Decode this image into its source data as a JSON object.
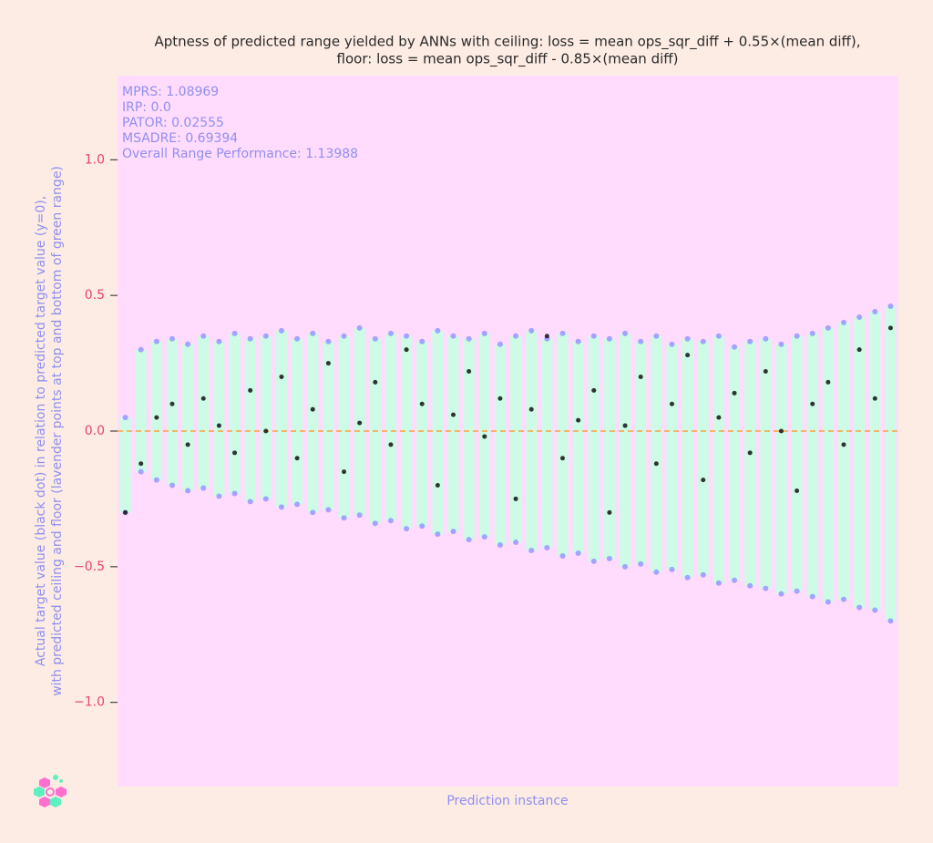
{
  "chart_data": {
    "type": "range-scatter",
    "title": [
      "Aptness of predicted range yielded by ANNs with ceiling: loss = mean ops_sqr_diff + 0.55×(mean diff),",
      "floor: loss = mean ops_sqr_diff - 0.85×(mean diff)"
    ],
    "annotations": [
      "MPRS: 1.08969",
      "IRP: 0.0",
      "PATOR: 0.02555",
      "MSADRE: 0.69394",
      "Overall Range Performance: 1.13988"
    ],
    "y_label": [
      "Actual target value (black dot) in relation to predicted target value (y=0),",
      "with predicted ceiling and floor (lavender points at top and bottom of green range)"
    ],
    "x_label": "Prediction instance",
    "ylim": [
      -1.31,
      1.31
    ],
    "yticks": [
      {
        "value": -1,
        "label": "−1.0"
      },
      {
        "value": -0.5,
        "label": "−0.5"
      },
      {
        "value": 0,
        "label": "0.0"
      },
      {
        "value": 0.5,
        "label": "0.5"
      },
      {
        "value": 1,
        "label": "1.0"
      }
    ],
    "reference_line": 0,
    "range_color": "#cdfbe6",
    "series": [
      {
        "name": "ceiling",
        "color": "#9b9bff",
        "values": [
          0.05,
          0.3,
          0.33,
          0.34,
          0.32,
          0.35,
          0.33,
          0.36,
          0.34,
          0.35,
          0.37,
          0.34,
          0.36,
          0.33,
          0.35,
          0.38,
          0.34,
          0.36,
          0.35,
          0.33,
          0.37,
          0.35,
          0.34,
          0.36,
          0.32,
          0.35,
          0.37,
          0.34,
          0.36,
          0.33,
          0.35,
          0.34,
          0.36,
          0.33,
          0.35,
          0.32,
          0.34,
          0.33,
          0.35,
          0.31,
          0.33,
          0.34,
          0.32,
          0.35,
          0.36,
          0.38,
          0.4,
          0.42,
          0.44,
          0.46
        ]
      },
      {
        "name": "floor",
        "color": "#9b9bff",
        "values": [
          -0.3,
          -0.15,
          -0.18,
          -0.2,
          -0.22,
          -0.21,
          -0.24,
          -0.23,
          -0.26,
          -0.25,
          -0.28,
          -0.27,
          -0.3,
          -0.29,
          -0.32,
          -0.31,
          -0.34,
          -0.33,
          -0.36,
          -0.35,
          -0.38,
          -0.37,
          -0.4,
          -0.39,
          -0.42,
          -0.41,
          -0.44,
          -0.43,
          -0.46,
          -0.45,
          -0.48,
          -0.47,
          -0.5,
          -0.49,
          -0.52,
          -0.51,
          -0.54,
          -0.53,
          -0.56,
          -0.55,
          -0.57,
          -0.58,
          -0.6,
          -0.59,
          -0.61,
          -0.63,
          -0.62,
          -0.65,
          -0.66,
          -0.7
        ]
      },
      {
        "name": "actual",
        "color": "#1e1e1e",
        "values": [
          -0.3,
          -0.12,
          0.05,
          0.1,
          -0.05,
          0.12,
          0.02,
          -0.08,
          0.15,
          0.0,
          0.2,
          -0.1,
          0.08,
          0.25,
          -0.15,
          0.03,
          0.18,
          -0.05,
          0.3,
          0.1,
          -0.2,
          0.06,
          0.22,
          -0.02,
          0.12,
          -0.25,
          0.08,
          0.35,
          -0.1,
          0.04,
          0.15,
          -0.3,
          0.02,
          0.2,
          -0.12,
          0.1,
          0.28,
          -0.18,
          0.05,
          0.14,
          -0.08,
          0.22,
          0.0,
          -0.22,
          0.1,
          0.18,
          -0.05,
          0.3,
          0.12,
          0.38
        ]
      }
    ]
  }
}
